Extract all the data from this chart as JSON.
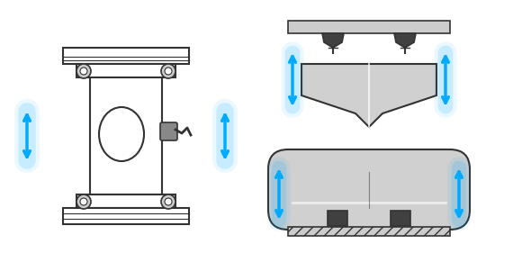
{
  "bg_color": "#ffffff",
  "arrow_color": "#00aaff",
  "dark_gray": "#404040",
  "mid_gray": "#888888",
  "light_gray": "#cccccc",
  "silver": "#d0d0d0",
  "dark_border": "#333333",
  "hatch_color": "#aaaaaa"
}
